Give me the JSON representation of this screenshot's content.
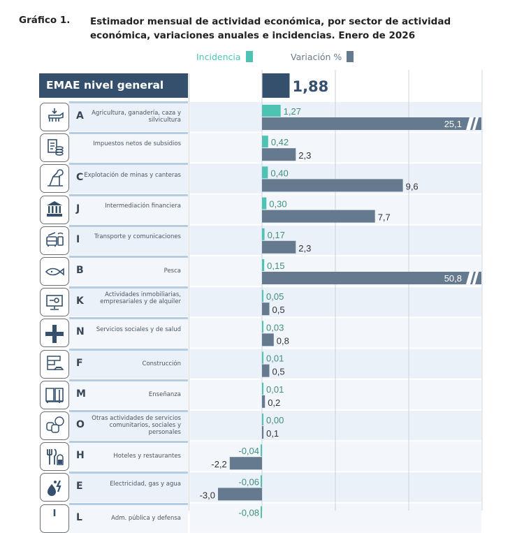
{
  "header": {
    "figure_number": "Gráfico 1.",
    "title": "Estimador mensual de actividad económica, por sector de actividad económica, variaciones anuales e incidencias. Enero de 2026"
  },
  "colors": {
    "incidencia": "#4ec3b3",
    "variacion": "#657a8e",
    "general": "#34506d",
    "row_even": "#eaf1f9",
    "row_odd": "#f3f7fc"
  },
  "chart_data": {
    "type": "bar",
    "orientation": "horizontal",
    "title": "Estimador mensual de actividad económica, por sector de actividad económica, variaciones anuales e incidencias. Enero de 2026",
    "legend": [
      {
        "name": "Incidencia",
        "color": "#4ec3b3"
      },
      {
        "name": "Variación %",
        "color": "#657a8e"
      }
    ],
    "legend_position": "top-center",
    "xlim": [
      -4.5,
      15
    ],
    "grid": true,
    "gridlines": [
      0,
      5,
      10,
      15
    ],
    "general": {
      "label": "EMAE nivel general",
      "value": 1.88,
      "display": "1,88"
    },
    "categories": [
      {
        "code": "A",
        "name": "Agricultura, ganadería, caza y silvicultura",
        "icon": "agriculture-icon",
        "incidencia": 1.27,
        "incidencia_label": "1,27",
        "variacion": 25.1,
        "variacion_label": "25,1",
        "broken": true
      },
      {
        "code": "",
        "name": "Impuestos netos de subsidios",
        "icon": "taxes-icon",
        "incidencia": 0.42,
        "incidencia_label": "0,42",
        "variacion": 2.3,
        "variacion_label": "2,3",
        "broken": false
      },
      {
        "code": "C",
        "name": "Explotación de minas y canteras",
        "icon": "mining-icon",
        "incidencia": 0.4,
        "incidencia_label": "0,40",
        "variacion": 9.6,
        "variacion_label": "9,6",
        "broken": false
      },
      {
        "code": "J",
        "name": "Intermediación financiera",
        "icon": "bank-icon",
        "incidencia": 0.3,
        "incidencia_label": "0,30",
        "variacion": 7.7,
        "variacion_label": "7,7",
        "broken": false
      },
      {
        "code": "I",
        "name": "Transporte y comunicaciones",
        "icon": "transport-icon",
        "incidencia": 0.17,
        "incidencia_label": "0,17",
        "variacion": 2.3,
        "variacion_label": "2,3",
        "broken": false
      },
      {
        "code": "B",
        "name": "Pesca",
        "icon": "fish-icon",
        "incidencia": 0.15,
        "incidencia_label": "0,15",
        "variacion": 50.8,
        "variacion_label": "50,8",
        "broken": true
      },
      {
        "code": "K",
        "name": "Actividades inmobiliarias, empresariales y de alquiler",
        "icon": "real-estate-icon",
        "incidencia": 0.05,
        "incidencia_label": "0,05",
        "variacion": 0.5,
        "variacion_label": "0,5",
        "broken": false
      },
      {
        "code": "N",
        "name": "Servicios sociales y de salud",
        "icon": "health-cross-icon",
        "incidencia": 0.03,
        "incidencia_label": "0,03",
        "variacion": 0.8,
        "variacion_label": "0,8",
        "broken": false
      },
      {
        "code": "F",
        "name": "Construcción",
        "icon": "construction-icon",
        "incidencia": 0.01,
        "incidencia_label": "0,01",
        "variacion": 0.5,
        "variacion_label": "0,5",
        "broken": false
      },
      {
        "code": "M",
        "name": "Enseñanza",
        "icon": "book-icon",
        "incidencia": 0.01,
        "incidencia_label": "0,01",
        "variacion": 0.2,
        "variacion_label": "0,2",
        "broken": false
      },
      {
        "code": "O",
        "name": "Otras actividades de servicios comunitarios, sociales y personales",
        "icon": "theater-masks-icon",
        "incidencia": 0.0,
        "incidencia_label": "0,00",
        "variacion": 0.1,
        "variacion_label": "0,1",
        "broken": false
      },
      {
        "code": "H",
        "name": "Hoteles y restaurantes",
        "icon": "hotel-restaurant-icon",
        "incidencia": -0.04,
        "incidencia_label": "-0,04",
        "variacion": -2.2,
        "variacion_label": "-2,2",
        "broken": false
      },
      {
        "code": "E",
        "name": "Electricidad, gas y agua",
        "icon": "utilities-icon",
        "incidencia": -0.06,
        "incidencia_label": "-0,06",
        "variacion": -3.0,
        "variacion_label": "-3,0",
        "broken": false
      },
      {
        "code": "L",
        "name": "Adm. pública y defensa",
        "icon": "public-admin-icon",
        "incidencia": -0.08,
        "incidencia_label": "-0,08",
        "variacion": null,
        "variacion_label": "",
        "broken": false
      }
    ]
  }
}
